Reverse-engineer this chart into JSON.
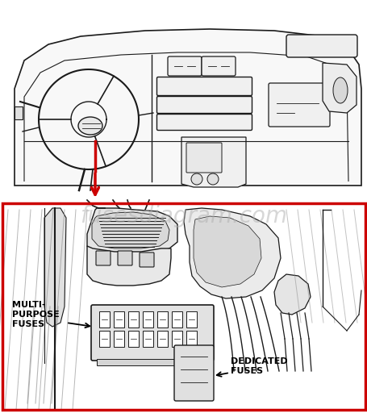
{
  "background_color": "#ffffff",
  "watermark_text": "fusesdiagram.com",
  "watermark_color": "#b0b0b0",
  "watermark_fontsize": 20,
  "arrow_color": "#cc0000",
  "box_color": "#cc0000",
  "label_multi": "MULTI-\nPURPOSE\nFUSES",
  "label_dedicated": "DEDICATED\nFUSES",
  "line_color": "#1a1a1a",
  "label_fontsize": 8,
  "fig_width": 4.56,
  "fig_height": 5.12
}
